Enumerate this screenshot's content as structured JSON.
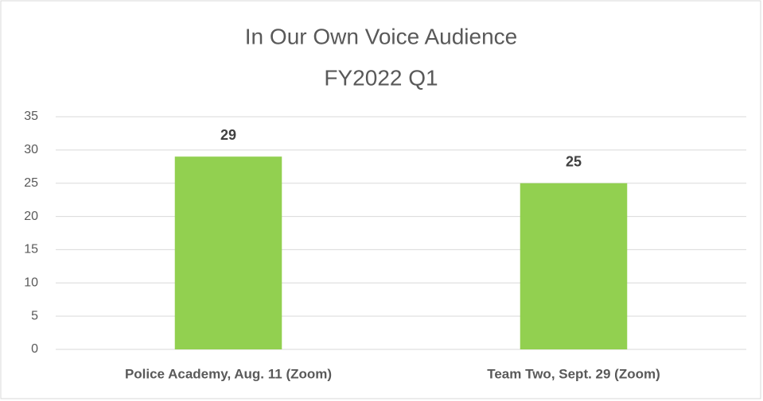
{
  "chart_data": {
    "type": "bar",
    "title": "In Our Own Voice Audience",
    "subtitle": "FY2022 Q1",
    "categories": [
      "Police Academy, Aug. 11 (Zoom)",
      "Team Two, Sept. 29 (Zoom)"
    ],
    "values": [
      29,
      25
    ],
    "color": "#92d050",
    "ylim": [
      0,
      35
    ],
    "yticks": [
      0,
      5,
      10,
      15,
      20,
      25,
      30,
      35
    ],
    "grid": true,
    "data_labels": true
  }
}
